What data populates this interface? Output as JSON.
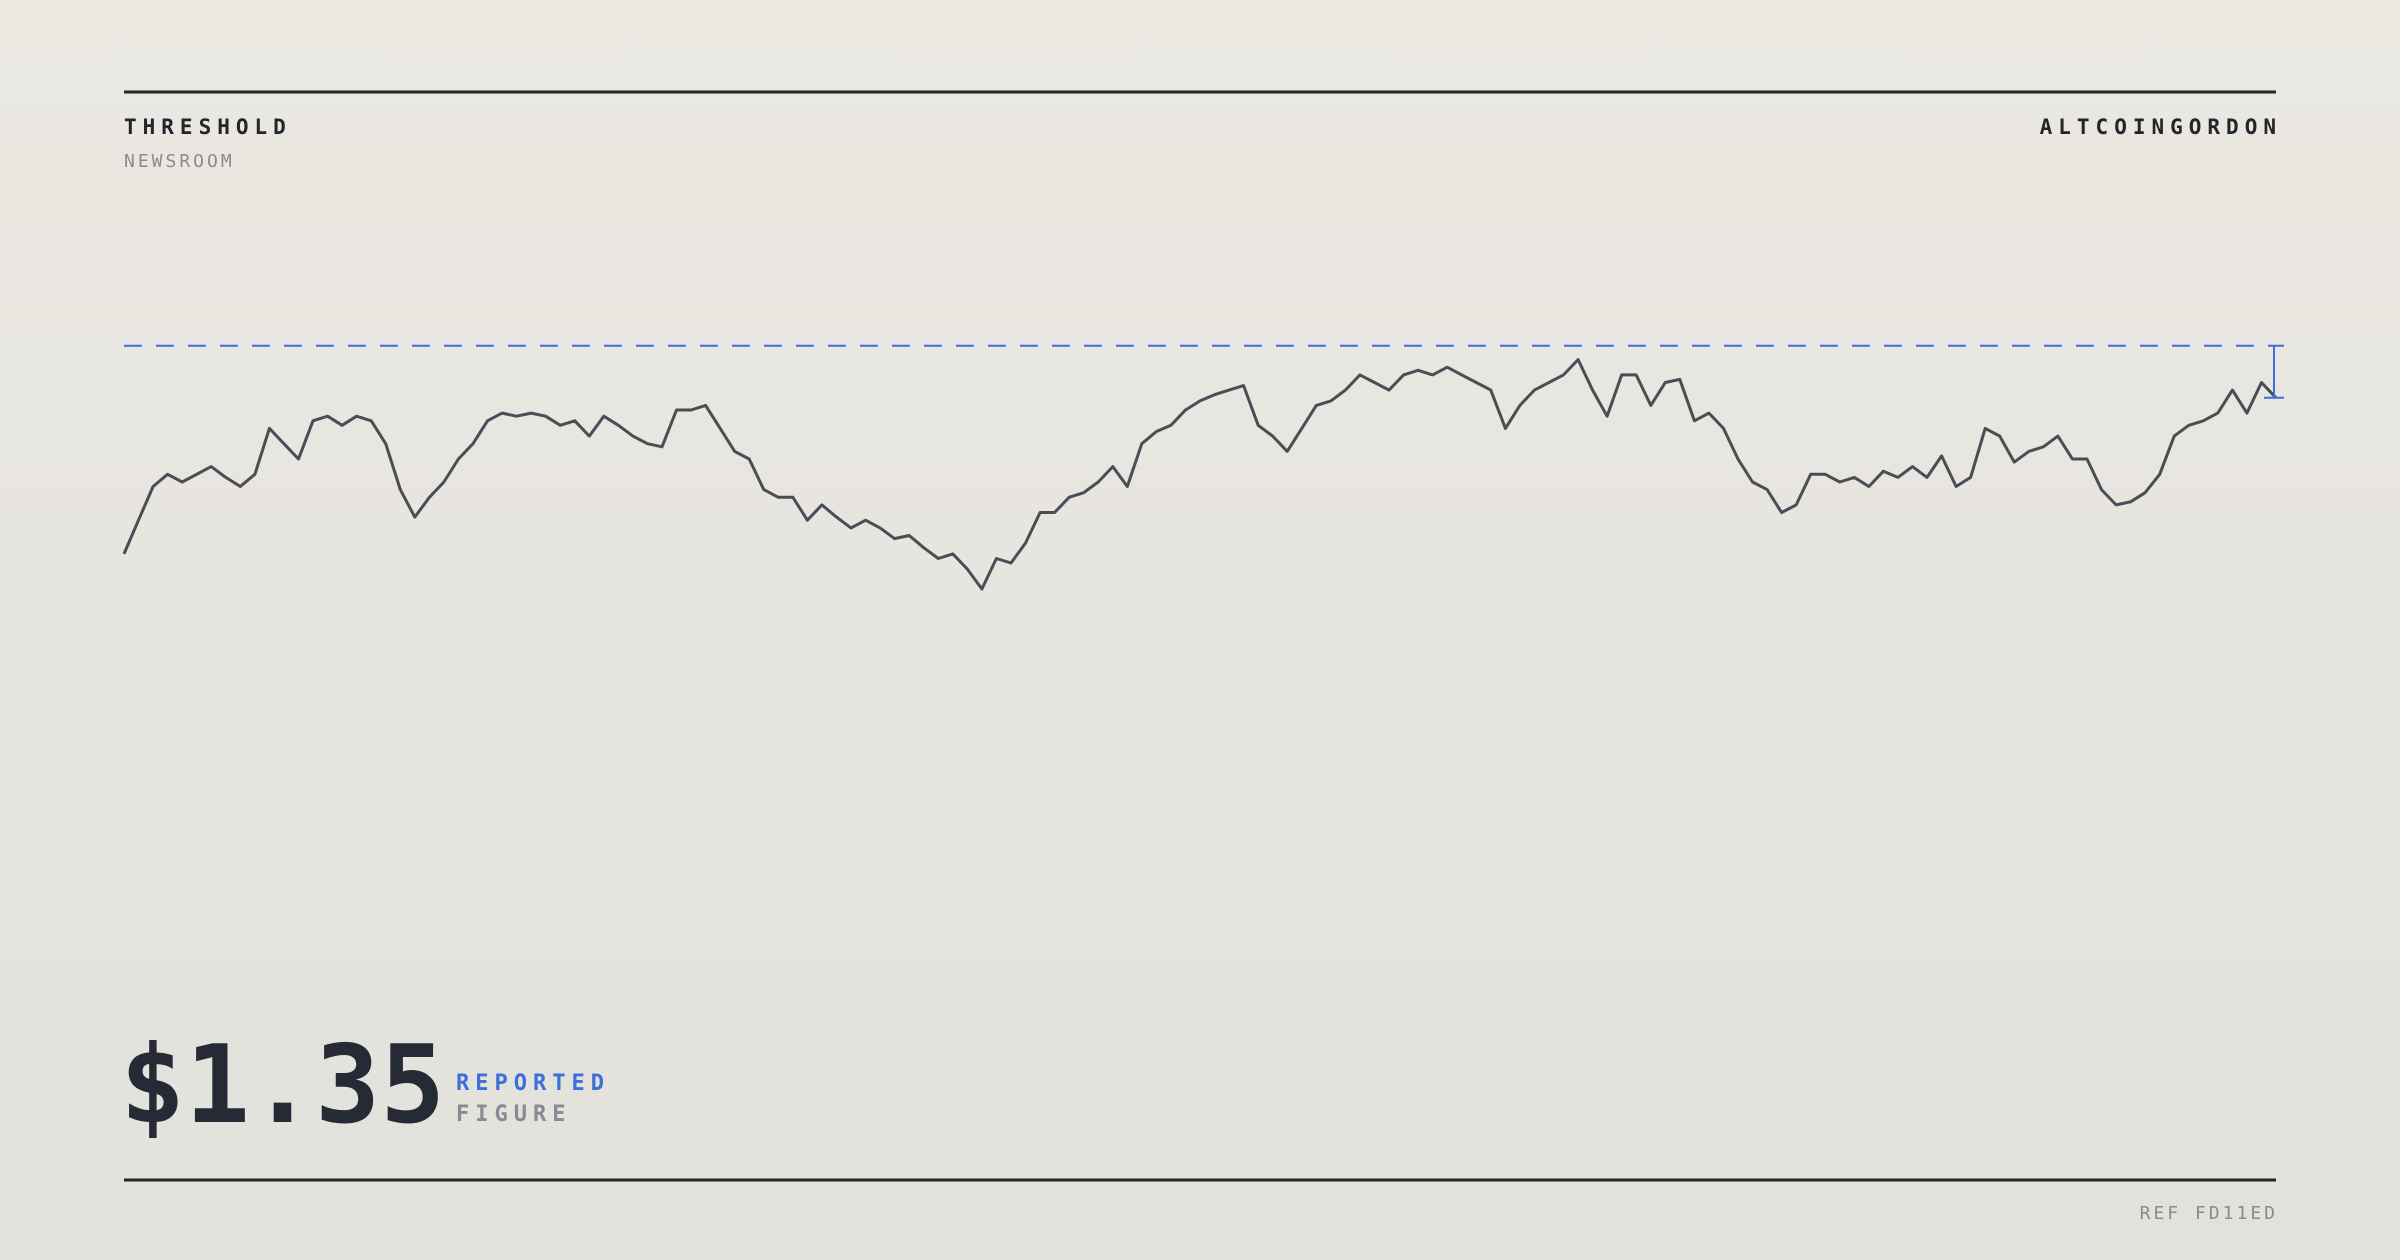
{
  "header": {
    "title": "THRESHOLD",
    "subtitle": "NEWSROOM",
    "author": "ALTCOINGORDON"
  },
  "chart_data": {
    "type": "line",
    "values": [
      38,
      60,
      82,
      90,
      85,
      90,
      95,
      88,
      82,
      90,
      120,
      110,
      100,
      125,
      128,
      122,
      128,
      125,
      110,
      80,
      62,
      75,
      85,
      100,
      110,
      125,
      130,
      128,
      130,
      128,
      122,
      125,
      115,
      128,
      122,
      115,
      110,
      108,
      132,
      132,
      135,
      120,
      105,
      100,
      80,
      75,
      75,
      60,
      70,
      62,
      55,
      60,
      55,
      48,
      50,
      42,
      35,
      38,
      28,
      15,
      35,
      32,
      45,
      65,
      65,
      75,
      78,
      85,
      95,
      82,
      110,
      118,
      122,
      132,
      138,
      142,
      145,
      148,
      122,
      115,
      105,
      120,
      135,
      138,
      145,
      155,
      150,
      145,
      155,
      158,
      155,
      160,
      155,
      150,
      145,
      120,
      135,
      145,
      150,
      155,
      165,
      145,
      128,
      155,
      155,
      135,
      150,
      152,
      125,
      130,
      120,
      100,
      85,
      80,
      65,
      70,
      90,
      90,
      85,
      88,
      82,
      92,
      88,
      95,
      88,
      102,
      82,
      88,
      120,
      115,
      98,
      105,
      108,
      115,
      100,
      100,
      80,
      70,
      72,
      78,
      90,
      115,
      122,
      125,
      130,
      145,
      130,
      150,
      140
    ],
    "color": "#4a4d55",
    "ylim": [
      0,
      200
    ],
    "threshold": 174,
    "threshold_color": "#3b6fd9"
  },
  "figure": {
    "value": "$1.35",
    "label": "REPORTED",
    "sublabel": "FIGURE"
  },
  "footer": {
    "ref": "REF FD11ED"
  }
}
